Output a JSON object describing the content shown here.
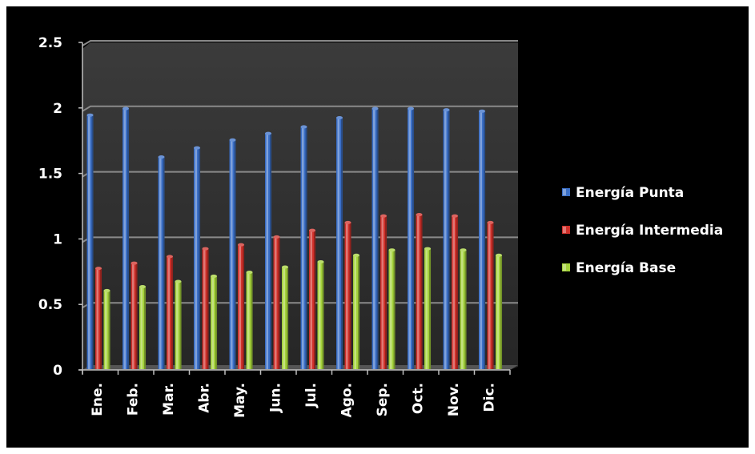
{
  "chart_data": {
    "type": "bar",
    "categories": [
      "Ene.",
      "Feb.",
      "Mar.",
      "Abr.",
      "May.",
      "Jun.",
      "Jul.",
      "Ago.",
      "Sep.",
      "Oct.",
      "Nov.",
      "Dic."
    ],
    "series": [
      {
        "name": "Energía Punta",
        "color": "#3a6fc7",
        "values": [
          1.97,
          2.02,
          1.65,
          1.72,
          1.78,
          1.83,
          1.88,
          1.95,
          2.02,
          2.02,
          2.01,
          2.0
        ]
      },
      {
        "name": "Energía Intermedia",
        "color": "#d0302a",
        "values": [
          0.8,
          0.84,
          0.89,
          0.95,
          0.98,
          1.04,
          1.09,
          1.15,
          1.2,
          1.21,
          1.2,
          1.15
        ]
      },
      {
        "name": "Energía Base",
        "color": "#a4d23a",
        "values": [
          0.63,
          0.66,
          0.7,
          0.74,
          0.77,
          0.81,
          0.85,
          0.9,
          0.94,
          0.95,
          0.94,
          0.9
        ]
      }
    ],
    "yticks": [
      "0",
      "0.5",
      "1",
      "1.5",
      "2",
      "2.5"
    ],
    "ylim": [
      0,
      2.5
    ],
    "grid": true,
    "legend": "right"
  }
}
